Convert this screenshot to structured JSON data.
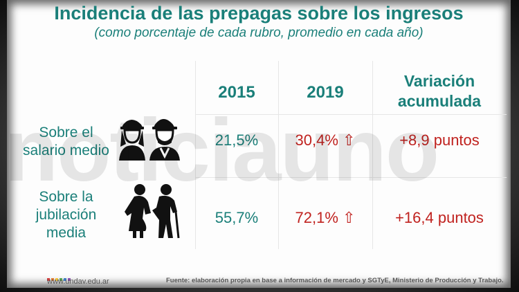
{
  "title": "Incidencia de las prepagas sobre los ingresos",
  "subtitle": "(como porcentaje de cada rubro, promedio en cada año)",
  "watermark": "noticiauno",
  "table": {
    "headers": [
      "2015",
      "2019",
      "Variación",
      "acumulada"
    ],
    "rows": [
      {
        "label_l1": "Sobre el",
        "label_l2": "salario medio",
        "icon": "workers-helmet-icon",
        "v2015": "21,5%",
        "v2019": "30,4%",
        "arrow": "⇧",
        "change": "+8,9 puntos"
      },
      {
        "label_l1": "Sobre la",
        "label_l2": "jubilación",
        "label_l3": "media",
        "icon": "elderly-couple-icon",
        "v2015": "55,7%",
        "v2019": "72,1%",
        "arrow": "⇧",
        "change": "+16,4 puntos"
      }
    ]
  },
  "footer": {
    "url": "www.undav.edu.ar",
    "source": "Fuente: elaboración propia en base a información de mercado y SGTyE, Ministerio de Producción y Trabajo.",
    "logo_colors": [
      "#d23c3c",
      "#e57b2f",
      "#f0c23b",
      "#5aa64f",
      "#3b7dc4",
      "#8a4fb1"
    ]
  },
  "colors": {
    "teal": "#1a7f79",
    "red": "#c0221f"
  }
}
